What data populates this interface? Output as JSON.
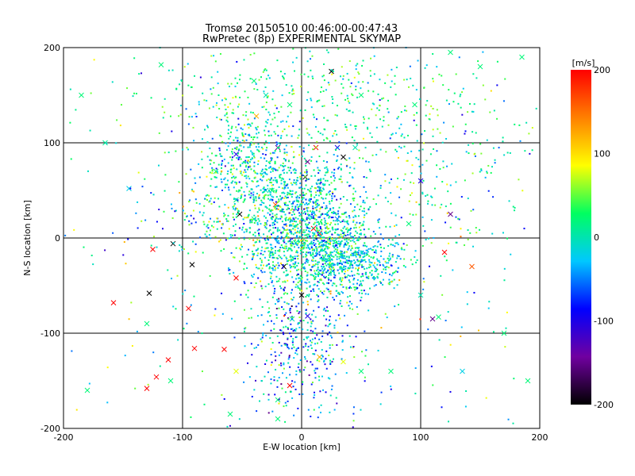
{
  "chart_data": {
    "type": "scatter",
    "title": "Tromsø 20150510 00:46:00-00:47:43",
    "subtitle": "RwPretec (8p) EXPERIMENTAL SKYMAP",
    "xlabel": "E-W location [km]",
    "ylabel": "N-S location [km]",
    "xlim": [
      -200,
      200
    ],
    "ylim": [
      -200,
      200
    ],
    "xticks": [
      -200,
      -100,
      0,
      100,
      200
    ],
    "yticks": [
      -200,
      -100,
      0,
      100,
      200
    ],
    "grid": true,
    "colorbar": {
      "label": "[m/s]",
      "range": [
        -200,
        200
      ],
      "ticks": [
        200,
        100,
        0,
        -100,
        -200
      ],
      "colors": [
        "#000000",
        "#7000a0",
        "#0000ff",
        "#00c8ff",
        "#00ff60",
        "#ffff00",
        "#ff8000",
        "#ff0000"
      ]
    },
    "markers": [
      "dot (small dense points)",
      "x (larger points)"
    ],
    "points": [
      [
        -185,
        150,
        20,
        "x"
      ],
      [
        -165,
        100,
        10,
        "x"
      ],
      [
        -145,
        52,
        -20,
        "x"
      ],
      [
        -118,
        182,
        20,
        "x"
      ],
      [
        -108,
        -6,
        -200,
        "x"
      ],
      [
        -125,
        -12,
        200,
        "x"
      ],
      [
        -128,
        -58,
        -200,
        "x"
      ],
      [
        -158,
        -68,
        200,
        "x"
      ],
      [
        -130,
        -90,
        20,
        "x"
      ],
      [
        -130,
        -158,
        200,
        "x"
      ],
      [
        -122,
        -146,
        200,
        "x"
      ],
      [
        -112,
        -128,
        200,
        "x"
      ],
      [
        -92,
        -28,
        -200,
        "x"
      ],
      [
        -95,
        -74,
        200,
        "x"
      ],
      [
        -90,
        -116,
        200,
        "x"
      ],
      [
        -65,
        -117,
        200,
        "x"
      ],
      [
        -55,
        -42,
        200,
        "x"
      ],
      [
        -72,
        70,
        20,
        "x"
      ],
      [
        -40,
        165,
        20,
        "x"
      ],
      [
        -38,
        128,
        120,
        "x"
      ],
      [
        -30,
        150,
        0,
        "x"
      ],
      [
        -40,
        20,
        20,
        "x"
      ],
      [
        -55,
        40,
        20,
        "x"
      ],
      [
        -22,
        35,
        160,
        "x"
      ],
      [
        -30,
        50,
        0,
        "x"
      ],
      [
        -20,
        95,
        -150,
        "x"
      ],
      [
        -55,
        88,
        -100,
        "x"
      ],
      [
        -15,
        -30,
        -200,
        "x"
      ],
      [
        0,
        -60,
        -200,
        "x"
      ],
      [
        5,
        -82,
        -100,
        "x"
      ],
      [
        -8,
        -85,
        0,
        "x"
      ],
      [
        -10,
        -155,
        200,
        "x"
      ],
      [
        15,
        -125,
        120,
        "x"
      ],
      [
        3,
        64,
        -200,
        "x"
      ],
      [
        5,
        80,
        -150,
        "x"
      ],
      [
        12,
        95,
        200,
        "x"
      ],
      [
        25,
        175,
        -200,
        "x"
      ],
      [
        30,
        95,
        -100,
        "x"
      ],
      [
        45,
        95,
        0,
        "x"
      ],
      [
        35,
        85,
        -200,
        "x"
      ],
      [
        10,
        10,
        200,
        "x"
      ],
      [
        15,
        5,
        200,
        "x"
      ],
      [
        -5,
        -5,
        20,
        "x"
      ],
      [
        30,
        20,
        -50,
        "x"
      ],
      [
        -52,
        25,
        -200,
        "x"
      ],
      [
        -25,
        50,
        20,
        "x"
      ],
      [
        -10,
        140,
        20,
        "x"
      ],
      [
        50,
        150,
        20,
        "x"
      ],
      [
        95,
        140,
        20,
        "x"
      ],
      [
        125,
        195,
        20,
        "x"
      ],
      [
        150,
        180,
        20,
        "x"
      ],
      [
        185,
        190,
        20,
        "x"
      ],
      [
        100,
        60,
        -100,
        "x"
      ],
      [
        125,
        25,
        -150,
        "x"
      ],
      [
        90,
        15,
        20,
        "x"
      ],
      [
        143,
        -30,
        160,
        "x"
      ],
      [
        120,
        -15,
        200,
        "x"
      ],
      [
        100,
        -60,
        0,
        "x"
      ],
      [
        110,
        -85,
        -150,
        "x"
      ],
      [
        115,
        -83,
        20,
        "x"
      ],
      [
        75,
        -140,
        20,
        "x"
      ],
      [
        50,
        -140,
        20,
        "x"
      ],
      [
        35,
        -130,
        80,
        "x"
      ],
      [
        -20,
        -170,
        20,
        "x"
      ],
      [
        -20,
        -190,
        20,
        "x"
      ],
      [
        -60,
        -185,
        20,
        "x"
      ],
      [
        -55,
        -140,
        80,
        "x"
      ],
      [
        170,
        -100,
        20,
        "x"
      ],
      [
        190,
        -150,
        20,
        "x"
      ],
      [
        135,
        -140,
        -20,
        "x"
      ],
      [
        -180,
        -160,
        20,
        "x"
      ],
      [
        -110,
        -150,
        20,
        "x"
      ]
    ]
  }
}
